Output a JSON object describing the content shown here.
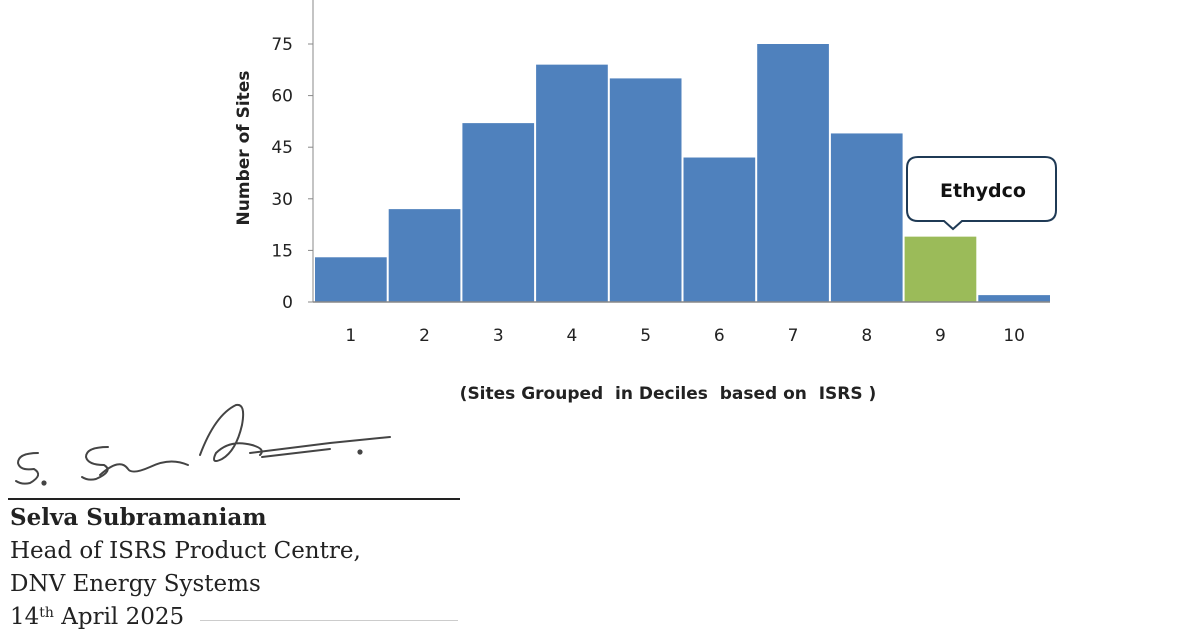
{
  "chart_data": {
    "type": "bar",
    "categories": [
      "1",
      "2",
      "3",
      "4",
      "5",
      "6",
      "7",
      "8",
      "9",
      "10"
    ],
    "values": [
      13,
      27,
      52,
      69,
      65,
      42,
      75,
      49,
      19,
      2
    ],
    "ylabel": "Number of Sites",
    "xlabel": "(Sites Grouped  in Deciles  based on  ISRS )",
    "ylim": [
      0,
      90
    ],
    "yticks": [
      0,
      15,
      30,
      45,
      60,
      75
    ],
    "grid": false,
    "bar_color": "#4f81bd",
    "highlight_color": "#9bbb59",
    "highlight_index": 8,
    "annotation": {
      "text": "Ethydco",
      "target_category": "9"
    }
  },
  "signature_block": {
    "name": "Selva Subramaniam",
    "role": "Head of ISRS Product Centre,",
    "organization": "DNV Energy Systems",
    "date_day": "14",
    "date_suffix": "th",
    "date_rest": " April 2025"
  }
}
